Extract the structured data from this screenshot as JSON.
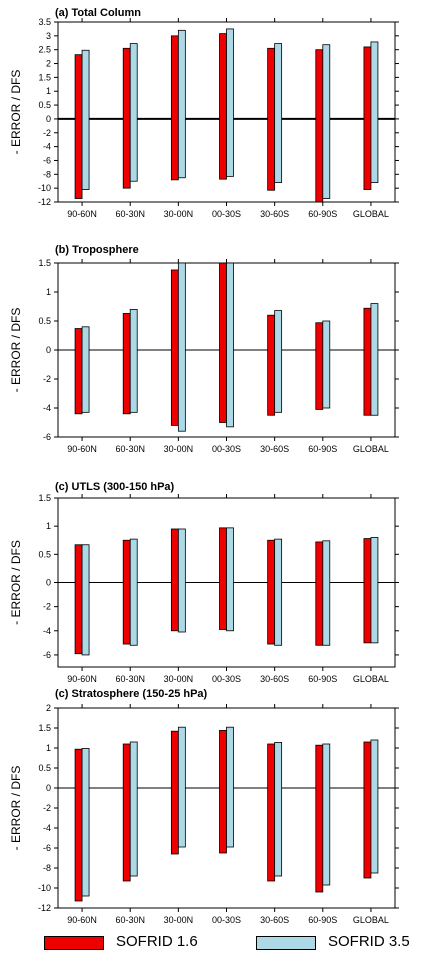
{
  "colors": {
    "series1": "#ee0000",
    "series2": "#add8e6",
    "stroke": "#000000"
  },
  "chart_data": [
    {
      "type": "bar",
      "title": "(a) Total Column",
      "ylabel": "- ERROR / DFS",
      "xlabel": "",
      "ylim": [
        -12,
        3.5
      ],
      "yticks": [
        3.5,
        3,
        2.5,
        2,
        1.5,
        1,
        0.5,
        0,
        -2,
        -4,
        -6,
        -8,
        -10,
        -12
      ],
      "ytick_labels": [
        "3.5",
        "3",
        "2.5",
        "2",
        "1.5",
        "1",
        "0.5",
        "0",
        "-2",
        "-4",
        "-6",
        "-8",
        "-10",
        "-12"
      ],
      "categories": [
        "90-60N",
        "60-30N",
        "30-00N",
        "00-30S",
        "30-60S",
        "60-90S",
        "GLOBAL"
      ],
      "series": [
        {
          "name": "SOFRID 1.6",
          "positive": [
            2.32,
            2.55,
            3.0,
            3.08,
            2.55,
            2.5,
            2.6
          ],
          "negative": [
            -11.5,
            -10.0,
            -8.8,
            -8.7,
            -10.3,
            -12.0,
            -10.2
          ]
        },
        {
          "name": "SOFRID 3.5",
          "positive": [
            2.48,
            2.72,
            3.2,
            3.25,
            2.72,
            2.68,
            2.78
          ],
          "negative": [
            -10.2,
            -9.0,
            -8.5,
            -8.3,
            -9.2,
            -11.5,
            -9.2
          ]
        }
      ],
      "grid": false,
      "zero_line": "thick"
    },
    {
      "type": "bar",
      "title": "(b) Troposphere",
      "ylabel": "- ERROR / DFS",
      "xlabel": "",
      "ylim": [
        -6,
        1.5
      ],
      "yticks": [
        1.5,
        1,
        0.5,
        0,
        -2,
        -4,
        -6
      ],
      "ytick_labels": [
        "1.5",
        "1",
        "0.5",
        "0",
        "-2",
        "-4",
        "-6"
      ],
      "categories": [
        "90-60N",
        "60-30N",
        "30-00N",
        "00-30S",
        "30-60S",
        "60-90S",
        "GLOBAL"
      ],
      "series": [
        {
          "name": "SOFRID 1.6",
          "positive": [
            0.37,
            0.63,
            1.38,
            1.5,
            0.6,
            0.47,
            0.72
          ],
          "negative": [
            -4.4,
            -4.4,
            -5.2,
            -5.0,
            -4.5,
            -4.1,
            -4.5
          ]
        },
        {
          "name": "SOFRID 3.5",
          "positive": [
            0.4,
            0.7,
            1.5,
            1.5,
            0.68,
            0.5,
            0.8
          ],
          "negative": [
            -4.3,
            -4.3,
            -5.6,
            -5.3,
            -4.3,
            -4.0,
            -4.5
          ]
        }
      ],
      "grid": false,
      "zero_line": "thin"
    },
    {
      "type": "bar",
      "title": "(c) UTLS (300-150 hPa)",
      "ylabel": "- ERROR / DFS",
      "xlabel": "",
      "ylim": [
        -7,
        1.5
      ],
      "yticks": [
        1.5,
        1,
        0.5,
        0,
        -2,
        -4,
        -6
      ],
      "ytick_labels": [
        "1.5",
        "1",
        "0.5",
        "0",
        "-2",
        "-4",
        "-6"
      ],
      "categories": [
        "90-60N",
        "60-30N",
        "30-00N",
        "00-30S",
        "30-60S",
        "60-90S",
        "GLOBAL"
      ],
      "series": [
        {
          "name": "SOFRID 1.6",
          "positive": [
            0.67,
            0.75,
            0.95,
            0.97,
            0.75,
            0.72,
            0.78
          ],
          "negative": [
            -5.9,
            -5.1,
            -4.0,
            -3.9,
            -5.1,
            -5.2,
            -5.0
          ]
        },
        {
          "name": "SOFRID 3.5",
          "positive": [
            0.67,
            0.77,
            0.95,
            0.97,
            0.77,
            0.74,
            0.8
          ],
          "negative": [
            -6.0,
            -5.2,
            -4.1,
            -4.0,
            -5.2,
            -5.2,
            -5.0
          ]
        }
      ],
      "grid": false,
      "zero_line": "thin"
    },
    {
      "type": "bar",
      "title": "(c) Stratosphere (150-25 hPa)",
      "ylabel": "- ERROR / DFS",
      "xlabel": "",
      "ylim": [
        -12,
        2
      ],
      "yticks": [
        2,
        1.5,
        1,
        0.5,
        0,
        -2,
        -4,
        -6,
        -8,
        -10,
        -12
      ],
      "ytick_labels": [
        "2",
        "1.5",
        "1",
        "0.5",
        "0",
        "-2",
        "-4",
        "-6",
        "-8",
        "-10",
        "-12"
      ],
      "categories": [
        "90-60N",
        "60-30N",
        "30-00N",
        "00-30S",
        "30-60S",
        "60-90S",
        "GLOBAL"
      ],
      "series": [
        {
          "name": "SOFRID 1.6",
          "positive": [
            0.97,
            1.1,
            1.42,
            1.44,
            1.1,
            1.07,
            1.15
          ],
          "negative": [
            -11.3,
            -9.3,
            -6.6,
            -6.5,
            -9.3,
            -10.4,
            -9.0
          ]
        },
        {
          "name": "SOFRID 3.5",
          "positive": [
            0.99,
            1.15,
            1.52,
            1.52,
            1.14,
            1.1,
            1.2
          ],
          "negative": [
            -10.8,
            -8.8,
            -5.9,
            -5.9,
            -8.8,
            -9.7,
            -8.5
          ]
        }
      ],
      "grid": false,
      "zero_line": "thin"
    }
  ],
  "legend": {
    "placement": "bottom",
    "items": [
      {
        "label": "SOFRID 1.6",
        "color": "#ee0000"
      },
      {
        "label": "SOFRID 3.5",
        "color": "#add8e6"
      }
    ]
  }
}
